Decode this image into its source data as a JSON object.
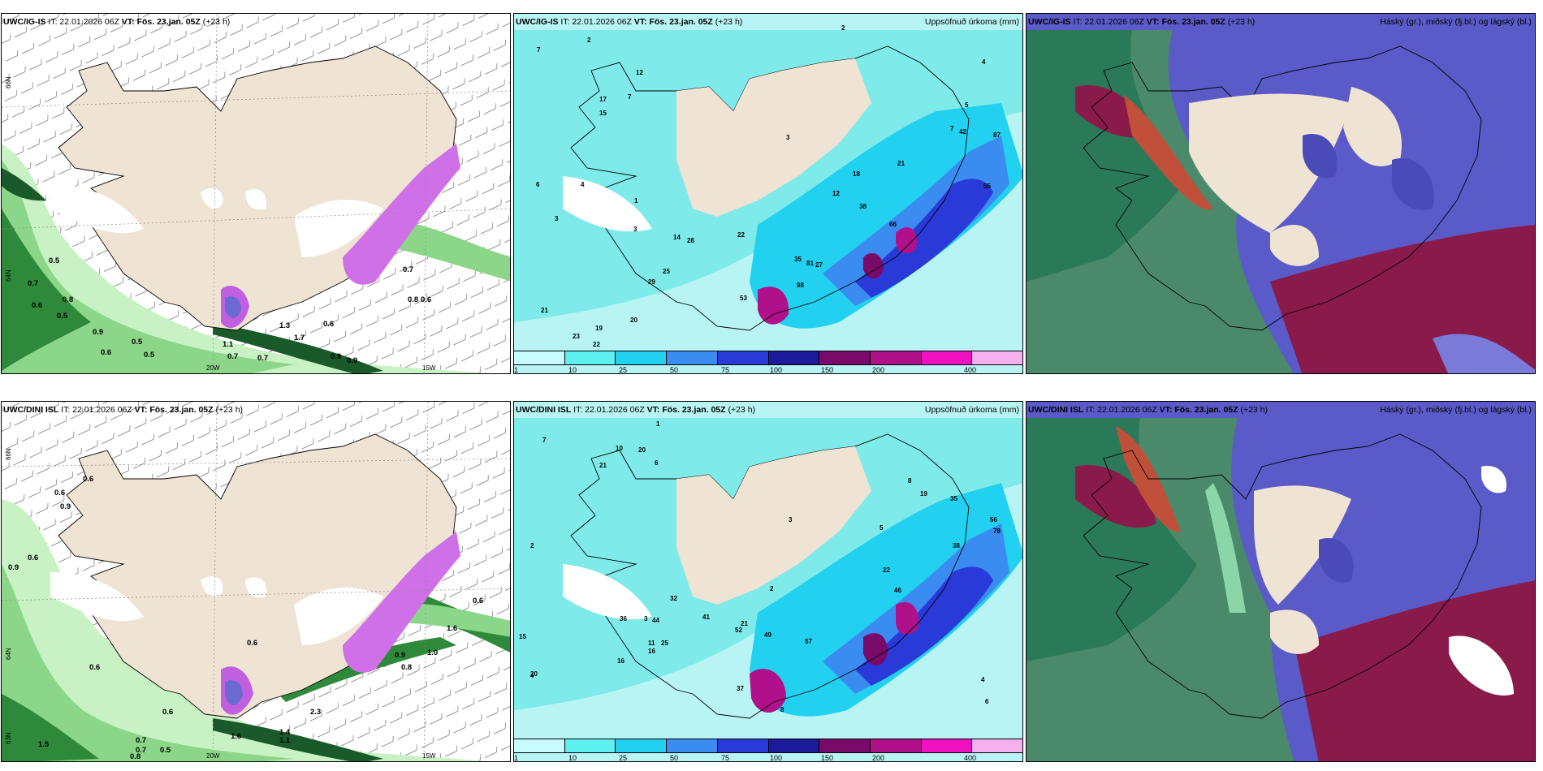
{
  "panels": [
    {
      "model": "UWC/IG-IS",
      "it": "IT: 22.01.2026 06Z",
      "vt_label": "VT:",
      "vt": "Fös. 23.jan. 05Z",
      "lead": "(+23 h)",
      "product": ""
    },
    {
      "model": "UWC/IG-IS",
      "it": "IT: 22.01.2026 06Z",
      "vt_label": "VT:",
      "vt": "Fös. 23.jan. 05Z",
      "lead": "(+23 h)",
      "product": "Uppsöfnuð úrkoma (mm)"
    },
    {
      "model": "UWC/IG-IS",
      "it": "IT: 22.01.2026 06Z",
      "vt_label": "VT:",
      "vt": "Fös. 23.jan. 05Z",
      "lead": "(+23 h)",
      "product": "Háský (gr.), miðský (fj.bl.) og lágský (bl.)"
    },
    {
      "model": "UWC/DINI ISL",
      "it": "IT: 22.01.2026 06Z",
      "vt_label": "VT:",
      "vt": "Fös. 23.jan. 05Z",
      "lead": "(+23 h)",
      "product": ""
    },
    {
      "model": "UWC/DINI ISL",
      "it": "IT: 22.01.2026 06Z",
      "vt_label": "VT:",
      "vt": "Fös. 23.jan. 05Z",
      "lead": "(+23 h)",
      "product": "Uppsöfnuð úrkoma (mm)"
    },
    {
      "model": "UWC/DINI ISL",
      "it": "IT: 22.01.2026 06Z",
      "vt_label": "VT:",
      "vt": "Fös. 23.jan. 05Z",
      "lead": "(+23 h)",
      "product": "Háský (gr.), miðský (fj.bl.) og lágský (bl.)"
    }
  ],
  "axis_labels": {
    "lat66": "66N",
    "lat64": "64N",
    "lat63": "63N",
    "lon20": "20W",
    "lon15": "15W"
  },
  "colorbar": {
    "labels": [
      "1",
      "10",
      "25",
      "50",
      "75",
      "100",
      "150",
      "200",
      "400"
    ],
    "colors": [
      "#c8fbfb",
      "#5ef0f0",
      "#22d0f0",
      "#3a8cf0",
      "#2a3ad8",
      "#1a1a9a",
      "#7a0a6a",
      "#b0108a",
      "#f010c0",
      "#f6b0f0"
    ]
  },
  "colors": {
    "land": "#efe3d4",
    "sea_wind": "#ffffff",
    "gust_light": "#c8f2c4",
    "gust_mid": "#6cc470",
    "gust_dark": "#1a6a2a",
    "precip_sea": "#b8f4f4",
    "cloud_low": "#5a5ac8",
    "cloud_mid": "#8a1a4a",
    "cloud_high": "#2a8a6a"
  },
  "gust_values_r1": [
    "0.5",
    "0.7",
    "0.6",
    "0.8",
    "0.5",
    "0.9",
    "0.5",
    "0.6",
    "0.5",
    "1.1",
    "0.7",
    "0.7",
    "1.3",
    "1.7",
    "0.6",
    "0.9",
    "0.9",
    "0.7",
    "0.8",
    "0.6"
  ],
  "gust_values_r2": [
    "0.6",
    "0.6",
    "0.9",
    "0.9",
    "0.6",
    "0.6",
    "1.5",
    "0.6",
    "0.7",
    "0.6",
    "0.7",
    "0.5",
    "0.8",
    "1.4",
    "2.3",
    "1.6",
    "1.1",
    "0.9",
    "1.0",
    "0.8",
    "1.6",
    "0.6"
  ],
  "precip_values_r1": [
    "7",
    "2",
    "3",
    "7",
    "12",
    "15",
    "17",
    "6",
    "4",
    "1",
    "3",
    "21",
    "23",
    "19",
    "22",
    "20",
    "25",
    "29",
    "28",
    "14",
    "22",
    "53",
    "35",
    "98",
    "81",
    "27",
    "38",
    "66",
    "42",
    "87",
    "55",
    "2",
    "4",
    "5",
    "3",
    "7",
    "18",
    "21",
    "12"
  ],
  "precip_values_r2": [
    "1",
    "7",
    "6",
    "10",
    "20",
    "21",
    "15",
    "2",
    "4",
    "3",
    "20",
    "16",
    "37",
    "11",
    "36",
    "52",
    "49",
    "16",
    "44",
    "32",
    "41",
    "21",
    "25",
    "57",
    "8",
    "22",
    "38",
    "46",
    "35",
    "56",
    "78",
    "2",
    "3",
    "5",
    "8",
    "19",
    "4",
    "6"
  ]
}
